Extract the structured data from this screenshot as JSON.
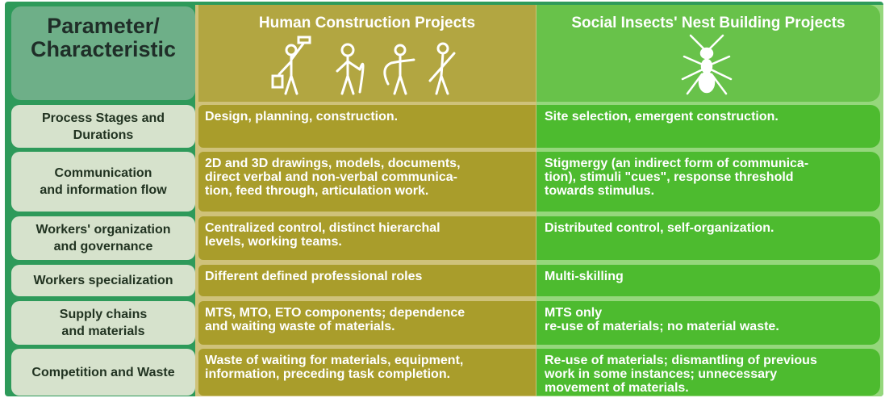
{
  "header": {
    "columns": [
      "Parameter/\nCharacteristic",
      "Human Construction Projects",
      "Social Insects' Nest Building Projects"
    ]
  },
  "table": {
    "rows": [
      [
        "Process Stages and\nDurations",
        "Design, planning, construction.",
        "Site selection, emergent construction."
      ],
      [
        "Communication\nand information flow",
        "2D and 3D drawings, models, documents,\ndirect verbal and non-verbal communica-\ntion, feed through, articulation work.",
        "Stigmergy (an indirect form of communica-\ntion), stimuli \"cues\", response threshold\ntowards stimulus."
      ],
      [
        "Workers' organization\nand governance",
        "Centralized control, distinct hierarchal\nlevels, working teams.",
        "Distributed control, self-organization."
      ],
      [
        "Workers specialization",
        "Different defined professional roles",
        "Multi-skilling"
      ],
      [
        "Supply chains\nand materials",
        "MTS, MTO, ETO components; dependence\nand waiting waste of materials.",
        "MTS only\nre-use of materials; no material waste."
      ],
      [
        "Competition and Waste",
        "Waste of waiting for materials, equipment,\ninformation, preceding task completion.",
        "Re-use of materials; dismantling of previous\nwork in some instances; unnecessary\nmovement of materials."
      ]
    ]
  }
}
